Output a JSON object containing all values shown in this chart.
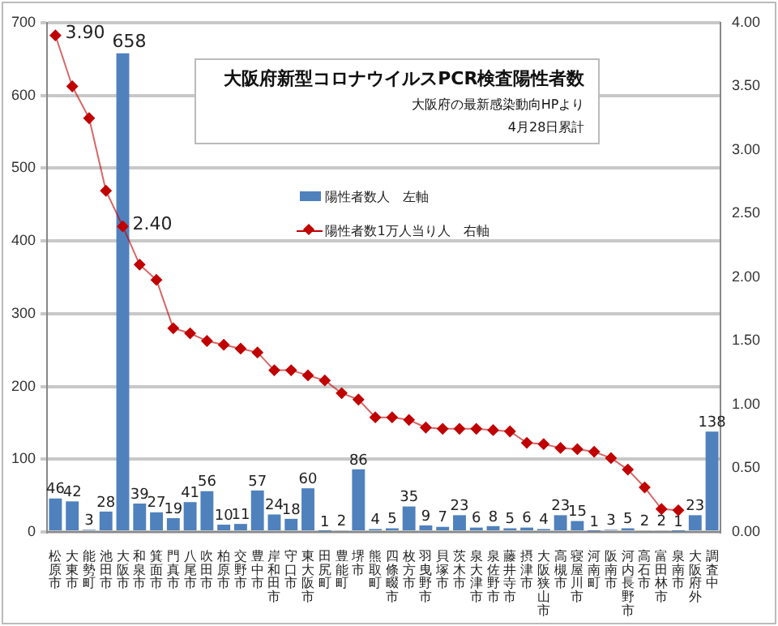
{
  "chart_data": {
    "type": "bar",
    "title": "大阪府新型コロナウイルスPCR検査陽性者数",
    "subtitle": "大阪府の最新感染動向HPより",
    "annotations": [
      "4月28日累計"
    ],
    "categories": [
      "松原市",
      "大東市",
      "能勢町",
      "池田市",
      "大阪市",
      "和泉市",
      "箕面市",
      "門真市",
      "八尾市",
      "吹田市",
      "柏原市",
      "交野市",
      "豊中市",
      "岸和田市",
      "守口市",
      "東大阪市",
      "田尻町",
      "豊能町",
      "堺市",
      "熊取町",
      "四條畷市",
      "枚方市",
      "羽曳野市",
      "貝塚市",
      "茨木市",
      "泉大津市",
      "泉佐野市",
      "藤井寺市",
      "摂津市",
      "大阪狭山市",
      "高槻市",
      "寝屋川市",
      "河南町",
      "阪南市",
      "河内長野市",
      "高石市",
      "富田林市",
      "泉南市",
      "大阪府外",
      "調査中"
    ],
    "series": [
      {
        "name": "陽性者数人　左軸",
        "color": "#4f81bd",
        "values": [
          46,
          42,
          3,
          28,
          658,
          39,
          27,
          19,
          41,
          56,
          10,
          11,
          57,
          24,
          18,
          60,
          1,
          2,
          86,
          4,
          5,
          35,
          9,
          7,
          23,
          6,
          8,
          5,
          6,
          4,
          23,
          15,
          1,
          3,
          5,
          2,
          2,
          1,
          23,
          138
        ],
        "value_labels": [
          "46",
          "42",
          "3",
          "28",
          "658",
          "39",
          "27",
          "19",
          "41",
          "56",
          "10",
          "11",
          "57",
          "24",
          "18",
          "60",
          "1",
          "2",
          "86",
          "4",
          "5",
          "35",
          "9",
          "7",
          "23",
          "6",
          "8",
          "5",
          "6",
          "4",
          "23",
          "15",
          "1",
          "3",
          "5",
          "2",
          "2",
          "1",
          "23",
          "138"
        ]
      },
      {
        "name": "陽性者数1万人当り人　右軸",
        "type": "line",
        "axis": "y2",
        "color": "#c00000",
        "marker": "diamond",
        "values": [
          3.9,
          3.5,
          3.25,
          2.68,
          2.4,
          2.1,
          1.98,
          1.6,
          1.56,
          1.5,
          1.47,
          1.44,
          1.41,
          1.27,
          1.27,
          1.23,
          1.19,
          1.09,
          1.04,
          0.9,
          0.9,
          0.88,
          0.82,
          0.81,
          0.81,
          0.81,
          0.8,
          0.79,
          0.7,
          0.69,
          0.66,
          0.65,
          0.63,
          0.58,
          0.49,
          0.35,
          0.18,
          0.17,
          null,
          null
        ],
        "value_labels": [
          "3.90",
          null,
          null,
          null,
          "2.40",
          null,
          null,
          null,
          null,
          null,
          null,
          null,
          null,
          null,
          null,
          null,
          null,
          null,
          null,
          null,
          null,
          null,
          null,
          null,
          null,
          null,
          null,
          null,
          null,
          null,
          null,
          null,
          null,
          null,
          null,
          null,
          null,
          null,
          null,
          null
        ]
      }
    ],
    "ylim": [
      0,
      700
    ],
    "yticks": [
      0,
      100,
      200,
      300,
      400,
      500,
      600,
      700
    ],
    "y2lim": [
      0,
      4
    ],
    "y2ticks": [
      {
        "value": 0,
        "label": "0.00"
      },
      {
        "value": 0.5,
        "label": "0.50"
      },
      {
        "value": 1,
        "label": "1.00"
      },
      {
        "value": 1.5,
        "label": "1.50"
      },
      {
        "value": 2,
        "label": "2.00"
      },
      {
        "value": 2.5,
        "label": "2.50"
      },
      {
        "value": 3,
        "label": "3.00"
      },
      {
        "value": 3.5,
        "label": "3.50"
      },
      {
        "value": 4,
        "label": "4.00"
      }
    ],
    "grid": "y",
    "legend": "center"
  }
}
